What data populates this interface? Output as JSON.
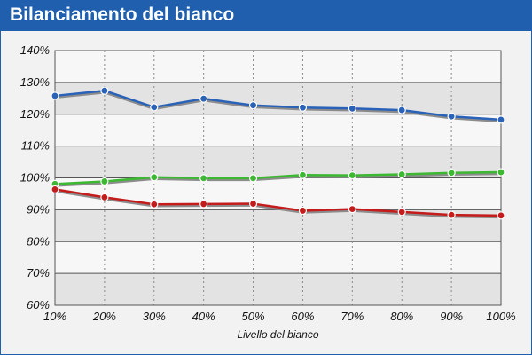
{
  "window": {
    "title": "Bilanciamento del bianco"
  },
  "colors": {
    "title_bar": "#1f5fae",
    "title_text": "#ffffff",
    "background": "#f2f2f2",
    "plot_band_light": "#f7f7f7",
    "plot_band_dark": "#e3e3e3",
    "shadow": "#8c8c8c"
  },
  "chart_data": {
    "type": "line",
    "title": "",
    "xlabel": "Livello del bianco",
    "ylabel": "",
    "categories": [
      "10%",
      "20%",
      "30%",
      "40%",
      "50%",
      "60%",
      "70%",
      "80%",
      "90%",
      "100%"
    ],
    "ylim": [
      60,
      140
    ],
    "yticks": [
      "60%",
      "70%",
      "80%",
      "90%",
      "100%",
      "110%",
      "120%",
      "130%",
      "140%"
    ],
    "grid": true,
    "legend": "none",
    "series": [
      {
        "color": "#2a62b8",
        "values": [
          125.8,
          127.4,
          122.2,
          124.9,
          122.8,
          122.1,
          121.8,
          121.3,
          119.3,
          118.3
        ]
      },
      {
        "color": "#3cb832",
        "values": [
          98.1,
          98.9,
          100.2,
          99.9,
          99.9,
          100.9,
          100.8,
          101.1,
          101.6,
          101.8
        ]
      },
      {
        "color": "#c41c1c",
        "values": [
          96.4,
          93.9,
          91.7,
          91.8,
          91.9,
          89.7,
          90.2,
          89.3,
          88.4,
          88.2
        ]
      }
    ]
  }
}
